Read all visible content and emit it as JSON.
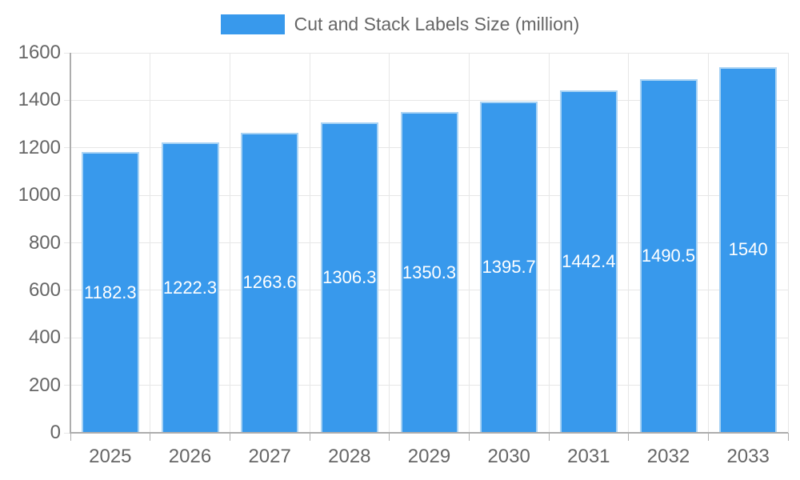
{
  "chart_data": {
    "type": "bar",
    "title": "Cut and Stack Labels Size (million)",
    "legend": [
      "Cut and Stack Labels Size (million)"
    ],
    "legend_position": "top-center",
    "categories": [
      "2025",
      "2026",
      "2027",
      "2028",
      "2029",
      "2030",
      "2031",
      "2032",
      "2033"
    ],
    "series": [
      {
        "name": "Cut and Stack Labels Size (million)",
        "values": [
          1182.3,
          1222.3,
          1263.6,
          1306.3,
          1350.3,
          1395.7,
          1442.4,
          1490.5,
          1540
        ]
      }
    ],
    "value_labels": [
      "1182.3",
      "1222.3",
      "1263.6",
      "1306.3",
      "1350.3",
      "1395.7",
      "1442.4",
      "1490.5",
      "1540"
    ],
    "xlabel": "",
    "ylabel": "",
    "ylim": [
      0,
      1600
    ],
    "yticks": [
      0,
      200,
      400,
      600,
      800,
      1000,
      1200,
      1400,
      1600
    ],
    "grid": true,
    "colors": {
      "bar_fill": "#3899EC",
      "bar_edge": "#A9D3F4",
      "value_label_text": "#FFFFFF",
      "axis_text": "#666666",
      "grid_line": "#E7E7E7",
      "axis_line": "#ADADAD",
      "background": "#FFFFFF"
    }
  }
}
